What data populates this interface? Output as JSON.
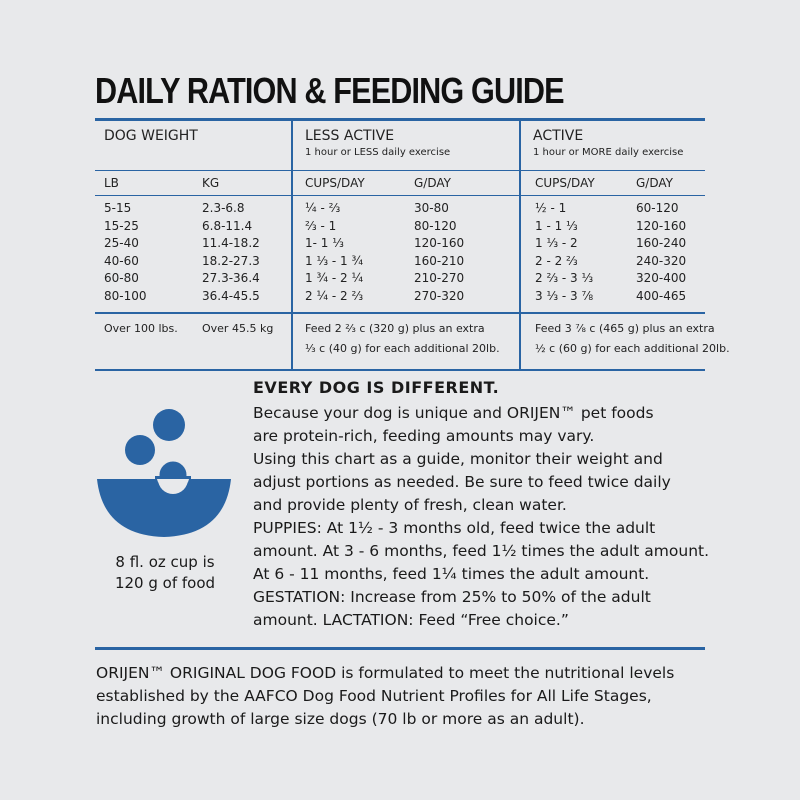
{
  "title": "DAILY RATION & FEEDING GUIDE",
  "colors": {
    "accent": "#2a64a3",
    "background": "#e8e9eb"
  },
  "table": {
    "groups": [
      {
        "label": "DOG WEIGHT",
        "sub": ""
      },
      {
        "label": "LESS ACTIVE",
        "sub": "1 hour or LESS daily exercise"
      },
      {
        "label": "ACTIVE",
        "sub": "1 hour or MORE daily exercise"
      }
    ],
    "columns": [
      "LB",
      "KG",
      "CUPS/DAY",
      "G/DAY",
      "CUPS/DAY",
      "G/DAY"
    ],
    "rows": [
      [
        "5-15",
        "2.3-6.8",
        "¼ - ⅔",
        "30-80",
        "½ - 1",
        "60-120"
      ],
      [
        "15-25",
        "6.8-11.4",
        "⅔ - 1",
        "80-120",
        "1 - 1 ⅓",
        "120-160"
      ],
      [
        "25-40",
        "11.4-18.2",
        "1- 1 ⅓",
        "120-160",
        "1 ⅓ - 2",
        "160-240"
      ],
      [
        "40-60",
        "18.2-27.3",
        "1 ⅓ - 1 ¾",
        "160-210",
        "2 - 2 ⅔",
        "240-320"
      ],
      [
        "60-80",
        "27.3-36.4",
        "1 ¾ - 2 ¼",
        "210-270",
        "2 ⅔ - 3 ⅓",
        "320-400"
      ],
      [
        "80-100",
        "36.4-45.5",
        "2 ¼ - 2 ⅔",
        "270-320",
        "3 ⅓ - 3 ⅞",
        "400-465"
      ]
    ],
    "over": {
      "lb": "Over 100 lbs.",
      "kg": "Over 45.5 kg",
      "less_active": [
        "Feed 2 ⅔ c (320 g) plus an extra",
        "⅓ c (40 g) for each additional 20lb."
      ],
      "active": [
        "Feed 3 ⅞ c (465 g) plus an extra",
        "½ c (60 g) for each additional 20lb."
      ]
    }
  },
  "icon": {
    "name": "bowl-icon",
    "caption": [
      "8 fl. oz cup is",
      "120 g of food"
    ]
  },
  "info": {
    "heading": "EVERY DOG IS DIFFERENT.",
    "lines": [
      "Because your dog is unique and ORIJEN™ pet foods",
      "are protein-rich, feeding amounts may vary.",
      "Using this chart as a guide, monitor their weight and",
      "adjust portions as needed. Be sure to feed twice daily",
      "and provide plenty of fresh, clean water.",
      "PUPPIES: At 1½ - 3 months old, feed twice the adult",
      "amount. At 3 - 6 months, feed 1½ times the adult amount.",
      "At 6 - 11 months, feed 1¼ times the adult amount.",
      "GESTATION: Increase from 25% to 50% of the adult",
      "amount. LACTATION: Feed “Free choice.”"
    ]
  },
  "footer": [
    "ORIJEN™ ORIGINAL DOG FOOD is formulated to meet the nutritional levels",
    "established by the AAFCO Dog Food Nutrient Profiles for All Life Stages,",
    "including growth of large size dogs (70 lb or more as an adult)."
  ]
}
